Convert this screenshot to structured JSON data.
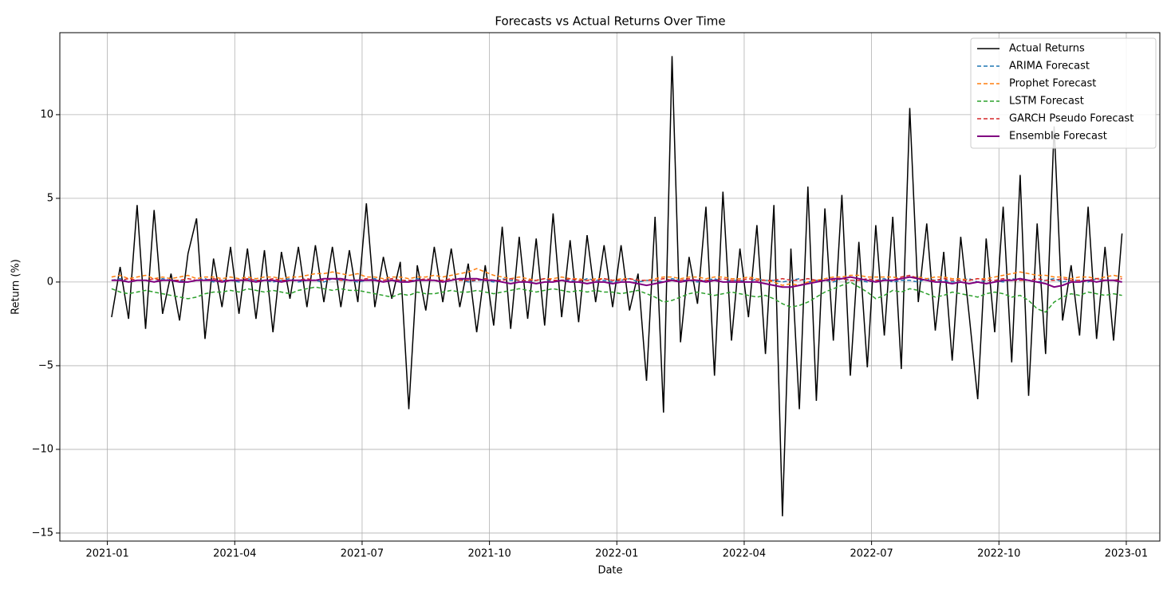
{
  "chart_data": {
    "type": "line",
    "title": "Forecasts vs Actual Returns Over Time",
    "x_label": "Date",
    "y_label": "Return (%)",
    "xlim": [
      -1.12,
      24.79
    ],
    "xticks": [
      {
        "value": 0,
        "label": "2021-01"
      },
      {
        "value": 3,
        "label": "2021-04"
      },
      {
        "value": 6,
        "label": "2021-07"
      },
      {
        "value": 9,
        "label": "2021-10"
      },
      {
        "value": 12,
        "label": "2022-01"
      },
      {
        "value": 15,
        "label": "2022-04"
      },
      {
        "value": 18,
        "label": "2022-07"
      },
      {
        "value": 21,
        "label": "2022-10"
      },
      {
        "value": 24,
        "label": "2023-01"
      }
    ],
    "ylim": [
      -15.48,
      14.9
    ],
    "yticks": [
      {
        "value": -15,
        "label": "−15"
      },
      {
        "value": -10,
        "label": "−10"
      },
      {
        "value": -5,
        "label": "−5"
      },
      0,
      5,
      10
    ],
    "grid": true,
    "legend": "upper right",
    "x": [
      0.1,
      0.3,
      0.5,
      0.7,
      0.9,
      1.1,
      1.3,
      1.5,
      1.7,
      1.9,
      2.1,
      2.3,
      2.5,
      2.7,
      2.9,
      3.1,
      3.3,
      3.5,
      3.7,
      3.9,
      4.1,
      4.3,
      4.5,
      4.7,
      4.9,
      5.1,
      5.3,
      5.5,
      5.7,
      5.9,
      6.1,
      6.3,
      6.5,
      6.7,
      6.9,
      7.1,
      7.3,
      7.5,
      7.7,
      7.9,
      8.1,
      8.3,
      8.5,
      8.7,
      8.9,
      9.1,
      9.3,
      9.5,
      9.7,
      9.9,
      10.1,
      10.3,
      10.5,
      10.7,
      10.9,
      11.1,
      11.3,
      11.5,
      11.7,
      11.9,
      12.1,
      12.3,
      12.5,
      12.7,
      12.9,
      13.1,
      13.3,
      13.5,
      13.7,
      13.9,
      14.1,
      14.3,
      14.5,
      14.7,
      14.9,
      15.1,
      15.3,
      15.5,
      15.7,
      15.9,
      16.1,
      16.3,
      16.5,
      16.7,
      16.9,
      17.1,
      17.3,
      17.5,
      17.7,
      17.9,
      18.1,
      18.3,
      18.5,
      18.7,
      18.9,
      19.1,
      19.3,
      19.5,
      19.7,
      19.9,
      20.1,
      20.3,
      20.5,
      20.7,
      20.9,
      21.1,
      21.3,
      21.5,
      21.7,
      21.9,
      22.1,
      22.3,
      22.5,
      22.7,
      22.9,
      23.1,
      23.3,
      23.5,
      23.7,
      23.9
    ],
    "series": [
      {
        "name": "Actual Returns",
        "color": "#000000",
        "linestyle": "solid",
        "width": 1.5,
        "values": [
          -2.1,
          0.9,
          -2.2,
          4.6,
          -2.8,
          4.3,
          -1.9,
          0.5,
          -2.3,
          1.7,
          3.8,
          -3.4,
          1.4,
          -1.5,
          2.1,
          -1.9,
          2.0,
          -2.2,
          1.9,
          -3.0,
          1.8,
          -1.0,
          2.1,
          -1.5,
          2.2,
          -1.2,
          2.1,
          -1.5,
          1.9,
          -1.2,
          4.7,
          -1.5,
          1.5,
          -1.0,
          1.2,
          -7.6,
          1.0,
          -1.7,
          2.1,
          -1.2,
          2.0,
          -1.5,
          1.1,
          -3.0,
          1.0,
          -2.6,
          3.3,
          -2.8,
          2.7,
          -2.2,
          2.6,
          -2.6,
          4.1,
          -2.1,
          2.5,
          -2.4,
          2.8,
          -1.2,
          2.2,
          -1.5,
          2.2,
          -1.7,
          0.5,
          -5.9,
          3.9,
          -7.8,
          13.5,
          -3.6,
          1.5,
          -1.3,
          4.5,
          -5.6,
          5.4,
          -3.5,
          2.0,
          -2.1,
          3.4,
          -4.3,
          4.6,
          -14.0,
          2.0,
          -7.6,
          5.7,
          -7.1,
          4.4,
          -3.5,
          5.2,
          -5.6,
          2.4,
          -5.1,
          3.4,
          -3.2,
          3.9,
          -5.2,
          10.4,
          -1.2,
          3.5,
          -2.9,
          1.8,
          -4.7,
          2.7,
          -2.0,
          -7.0,
          2.6,
          -3.0,
          4.5,
          -4.8,
          6.4,
          -6.8,
          3.5,
          -4.3,
          9.3,
          -2.3,
          1.0,
          -3.2,
          4.5,
          -3.4,
          2.1,
          -3.5,
          2.9
        ]
      },
      {
        "name": "ARIMA Forecast",
        "color": "#1f77b4",
        "linestyle": "dashed",
        "width": 1.5,
        "values": [
          0.1,
          0.2,
          0.0,
          0.1,
          0.1,
          0.0,
          0.2,
          0.1,
          0.1,
          0.0,
          0.1,
          0.2,
          0.0,
          0.1,
          0.1,
          0.0,
          0.2,
          0.1,
          0.1,
          0.0,
          0.1,
          0.2,
          0.0,
          0.1,
          0.1,
          0.0,
          0.2,
          0.1,
          0.1,
          0.0,
          0.1,
          0.2,
          0.0,
          0.1,
          0.1,
          0.0,
          0.2,
          0.1,
          0.1,
          0.0,
          0.1,
          0.2,
          0.0,
          0.1,
          0.1,
          0.0,
          0.2,
          0.1,
          0.1,
          0.0,
          0.1,
          0.2,
          0.0,
          0.1,
          0.1,
          0.0,
          0.2,
          0.1,
          0.1,
          0.0,
          0.1,
          0.2,
          0.0,
          0.1,
          0.1,
          0.0,
          0.2,
          0.1,
          0.1,
          0.0,
          0.1,
          0.2,
          0.0,
          0.1,
          0.1,
          0.0,
          0.2,
          0.1,
          0.1,
          0.0,
          0.1,
          0.2,
          0.0,
          0.1,
          0.1,
          0.0,
          0.2,
          0.1,
          0.1,
          0.0,
          0.1,
          0.2,
          0.0,
          0.1,
          0.1,
          0.0,
          0.2,
          0.1,
          0.1,
          0.0,
          0.1,
          0.2,
          0.0,
          0.1,
          0.1,
          0.0,
          0.2,
          0.1,
          0.1,
          0.0,
          0.1,
          0.2,
          0.0,
          0.1,
          0.1,
          0.0,
          0.2,
          0.1,
          0.1,
          0.0
        ]
      },
      {
        "name": "Prophet Forecast",
        "color": "#ff7f0e",
        "linestyle": "dashed",
        "width": 1.5,
        "values": [
          0.3,
          0.4,
          0.2,
          0.3,
          0.4,
          0.2,
          0.3,
          0.2,
          0.3,
          0.4,
          0.2,
          0.3,
          0.3,
          0.2,
          0.3,
          0.2,
          0.3,
          0.2,
          0.3,
          0.3,
          0.2,
          0.3,
          0.3,
          0.4,
          0.5,
          0.5,
          0.6,
          0.5,
          0.4,
          0.5,
          0.3,
          0.3,
          0.2,
          0.3,
          0.3,
          0.2,
          0.3,
          0.3,
          0.4,
          0.3,
          0.4,
          0.5,
          0.6,
          0.8,
          0.6,
          0.4,
          0.3,
          0.2,
          0.3,
          0.2,
          0.1,
          0.2,
          0.2,
          0.3,
          0.2,
          0.2,
          0.1,
          0.2,
          0.2,
          0.1,
          0.2,
          0.2,
          0.1,
          0.1,
          0.2,
          0.3,
          0.3,
          0.2,
          0.3,
          0.3,
          0.2,
          0.3,
          0.3,
          0.2,
          0.2,
          0.3,
          0.2,
          0.1,
          0.0,
          -0.2,
          -0.1,
          -0.2,
          0.0,
          0.1,
          0.2,
          0.3,
          0.3,
          0.4,
          0.4,
          0.3,
          0.3,
          0.3,
          0.3,
          0.2,
          0.3,
          0.3,
          0.2,
          0.3,
          0.3,
          0.2,
          0.2,
          0.1,
          0.2,
          0.2,
          0.3,
          0.4,
          0.5,
          0.6,
          0.5,
          0.4,
          0.4,
          0.3,
          0.3,
          0.2,
          0.3,
          0.3,
          0.2,
          0.3,
          0.4,
          0.3
        ]
      },
      {
        "name": "LSTM Forecast",
        "color": "#2ca02c",
        "linestyle": "dashed",
        "width": 1.5,
        "values": [
          -0.4,
          -0.6,
          -0.7,
          -0.6,
          -0.5,
          -0.6,
          -0.7,
          -0.8,
          -0.9,
          -1.0,
          -0.9,
          -0.7,
          -0.6,
          -0.6,
          -0.5,
          -0.6,
          -0.4,
          -0.5,
          -0.6,
          -0.5,
          -0.6,
          -0.7,
          -0.5,
          -0.4,
          -0.3,
          -0.4,
          -0.5,
          -0.4,
          -0.5,
          -0.5,
          -0.6,
          -0.7,
          -0.8,
          -0.9,
          -0.7,
          -0.8,
          -0.6,
          -0.7,
          -0.7,
          -0.6,
          -0.5,
          -0.6,
          -0.6,
          -0.5,
          -0.6,
          -0.7,
          -0.6,
          -0.5,
          -0.4,
          -0.5,
          -0.6,
          -0.5,
          -0.4,
          -0.5,
          -0.6,
          -0.5,
          -0.6,
          -0.5,
          -0.6,
          -0.6,
          -0.7,
          -0.6,
          -0.5,
          -0.7,
          -0.9,
          -1.2,
          -1.1,
          -0.9,
          -0.7,
          -0.6,
          -0.7,
          -0.8,
          -0.7,
          -0.6,
          -0.7,
          -0.8,
          -0.9,
          -0.8,
          -1.0,
          -1.3,
          -1.5,
          -1.4,
          -1.2,
          -0.9,
          -0.6,
          -0.4,
          -0.2,
          0.0,
          -0.3,
          -0.6,
          -1.0,
          -0.8,
          -0.5,
          -0.6,
          -0.4,
          -0.5,
          -0.7,
          -0.9,
          -0.8,
          -0.6,
          -0.7,
          -0.8,
          -0.9,
          -0.7,
          -0.6,
          -0.7,
          -0.9,
          -0.8,
          -1.1,
          -1.6,
          -1.8,
          -1.2,
          -0.9,
          -0.7,
          -0.8,
          -0.6,
          -0.7,
          -0.8,
          -0.7,
          -0.8
        ]
      },
      {
        "name": "GARCH Pseudo Forecast",
        "color": "#d62728",
        "linestyle": "dashed",
        "width": 1.5,
        "values": [
          0.1,
          0.1,
          0.2,
          0.1,
          0.1,
          0.2,
          0.1,
          0.1,
          0.1,
          0.2,
          0.1,
          0.1,
          0.2,
          0.1,
          0.1,
          0.1,
          0.2,
          0.1,
          0.1,
          0.2,
          0.1,
          0.1,
          0.1,
          0.2,
          0.1,
          0.1,
          0.2,
          0.1,
          0.1,
          0.1,
          0.2,
          0.1,
          0.1,
          0.2,
          0.1,
          0.1,
          0.1,
          0.2,
          0.1,
          0.1,
          0.2,
          0.1,
          0.1,
          0.1,
          0.2,
          0.1,
          0.1,
          0.2,
          0.1,
          0.1,
          0.1,
          0.2,
          0.1,
          0.1,
          0.2,
          0.1,
          0.1,
          0.1,
          0.2,
          0.1,
          0.1,
          0.2,
          0.1,
          0.1,
          0.1,
          0.2,
          0.1,
          0.1,
          0.2,
          0.1,
          0.1,
          0.1,
          0.2,
          0.1,
          0.1,
          0.2,
          0.1,
          0.1,
          0.1,
          0.2,
          0.1,
          0.1,
          0.2,
          0.1,
          0.1,
          0.1,
          0.2,
          0.1,
          0.1,
          0.2,
          0.1,
          0.1,
          0.1,
          0.3,
          0.4,
          0.2,
          0.1,
          0.1,
          0.2,
          0.1,
          0.1,
          0.1,
          0.2,
          0.1,
          0.1,
          0.2,
          0.1,
          0.1,
          0.1,
          0.2,
          0.1,
          0.1,
          0.2,
          0.1,
          0.1,
          0.1,
          0.2,
          0.1,
          0.1,
          0.2
        ]
      },
      {
        "name": "Ensemble Forecast",
        "color": "#800080",
        "linestyle": "solid",
        "width": 2,
        "values": [
          0.1,
          0.1,
          0.0,
          0.1,
          0.1,
          0.0,
          0.1,
          0.1,
          0.0,
          0.0,
          0.1,
          0.1,
          0.1,
          0.0,
          0.1,
          0.1,
          0.1,
          0.0,
          0.1,
          0.1,
          0.0,
          0.1,
          0.1,
          0.1,
          0.1,
          0.2,
          0.2,
          0.2,
          0.1,
          0.1,
          0.1,
          0.1,
          0.0,
          0.1,
          0.0,
          0.0,
          0.1,
          0.1,
          0.1,
          0.0,
          0.1,
          0.2,
          0.2,
          0.2,
          0.1,
          0.1,
          0.0,
          -0.1,
          0.0,
          0.0,
          -0.1,
          0.0,
          0.0,
          0.1,
          0.0,
          0.0,
          -0.1,
          0.0,
          0.0,
          -0.1,
          0.0,
          0.0,
          -0.1,
          -0.2,
          -0.1,
          0.0,
          0.1,
          0.0,
          0.1,
          0.1,
          0.0,
          0.1,
          0.0,
          0.0,
          0.0,
          0.0,
          0.0,
          -0.1,
          -0.2,
          -0.3,
          -0.3,
          -0.2,
          -0.1,
          0.0,
          0.1,
          0.2,
          0.2,
          0.3,
          0.2,
          0.1,
          0.0,
          0.1,
          0.1,
          0.2,
          0.3,
          0.2,
          0.1,
          0.0,
          0.0,
          -0.1,
          0.0,
          -0.1,
          0.0,
          -0.1,
          0.0,
          0.1,
          0.1,
          0.2,
          0.1,
          0.0,
          -0.1,
          -0.3,
          -0.2,
          0.0,
          0.0,
          0.1,
          0.0,
          0.1,
          0.1,
          0.0
        ]
      }
    ]
  }
}
